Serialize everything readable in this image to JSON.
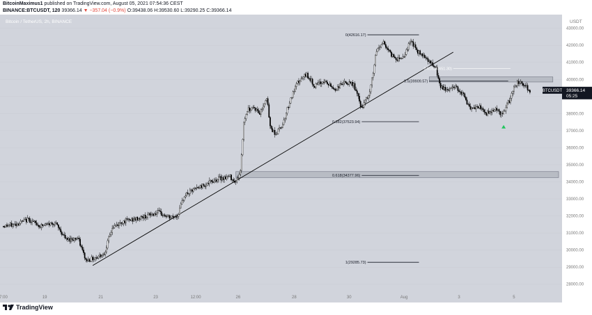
{
  "header": {
    "user": "BitcoinMaximus1",
    "published_text": "published on TradingView.com, August 05, 2021 07:54:36 CEST",
    "symbol_line": "BINANCE:BTCUSDT, 120",
    "last": "39366.14",
    "change": "▼ −357.04 (−0.9%)",
    "open": "O:39438.06",
    "high": "H:39530.60",
    "low": "L:39290.25",
    "close": "C:39366.14"
  },
  "footer": {
    "brand": "TradingView"
  },
  "colors": {
    "background": "#d1d4dc",
    "candle_up": "#ffffff",
    "candle_down": "#000000",
    "down_text": "#e0463b",
    "marker": "#22c55e",
    "zone": "#b2b5be"
  },
  "chart_data": {
    "type": "candlestick",
    "title": "Bitcoin / TetherUS, 2h, BINANCE",
    "price_axis_label": "USDT",
    "ylim": [
      27500,
      43800
    ],
    "y_ticks": [
      28000,
      29000,
      30000,
      31000,
      32000,
      33000,
      34000,
      35000,
      36000,
      37000,
      38000,
      39000,
      40000,
      41000,
      42000,
      43000
    ],
    "y_tick_labels": [
      "28000.00",
      "29000.00",
      "30000.00",
      "31000.00",
      "32000.00",
      "33000.00",
      "34000.00",
      "35000.00",
      "36000.00",
      "37000.00",
      "38000.00",
      "39000.00",
      "40000.00",
      "41000.00",
      "42000.00",
      "43000.00"
    ],
    "x_ticks": [
      {
        "t": 0,
        "label": "7:00"
      },
      {
        "t": 36,
        "label": "19"
      },
      {
        "t": 85,
        "label": "21"
      },
      {
        "t": 133,
        "label": "23"
      },
      {
        "t": 168,
        "label": "12:00"
      },
      {
        "t": 205,
        "label": "26"
      },
      {
        "t": 254,
        "label": "28"
      },
      {
        "t": 302,
        "label": "30"
      },
      {
        "t": 350,
        "label": "Aug"
      },
      {
        "t": 398,
        "label": "3"
      },
      {
        "t": 446,
        "label": "5"
      }
    ],
    "x_range": [
      0,
      485
    ],
    "price_label": {
      "value": 39366.14,
      "text": "39366.14",
      "symbol": "BTCUSDT",
      "countdown": "05:25"
    },
    "anchors": [
      {
        "t": 0,
        "p": 31400
      },
      {
        "t": 10,
        "p": 31500
      },
      {
        "t": 22,
        "p": 31800
      },
      {
        "t": 32,
        "p": 31400
      },
      {
        "t": 45,
        "p": 31600
      },
      {
        "t": 55,
        "p": 30600
      },
      {
        "t": 65,
        "p": 30700
      },
      {
        "t": 72,
        "p": 29400
      },
      {
        "t": 78,
        "p": 29500
      },
      {
        "t": 88,
        "p": 29800
      },
      {
        "t": 95,
        "p": 31300
      },
      {
        "t": 105,
        "p": 31700
      },
      {
        "t": 115,
        "p": 31800
      },
      {
        "t": 125,
        "p": 32000
      },
      {
        "t": 135,
        "p": 32200
      },
      {
        "t": 145,
        "p": 31900
      },
      {
        "t": 152,
        "p": 32000
      },
      {
        "t": 158,
        "p": 33200
      },
      {
        "t": 168,
        "p": 33600
      },
      {
        "t": 178,
        "p": 33900
      },
      {
        "t": 188,
        "p": 34200
      },
      {
        "t": 198,
        "p": 34300
      },
      {
        "t": 203,
        "p": 34000
      },
      {
        "t": 207,
        "p": 34600
      },
      {
        "t": 210,
        "p": 37500
      },
      {
        "t": 213,
        "p": 38200
      },
      {
        "t": 218,
        "p": 38400
      },
      {
        "t": 224,
        "p": 38000
      },
      {
        "t": 230,
        "p": 39000
      },
      {
        "t": 233,
        "p": 37200
      },
      {
        "t": 238,
        "p": 36800
      },
      {
        "t": 244,
        "p": 37400
      },
      {
        "t": 250,
        "p": 38700
      },
      {
        "t": 257,
        "p": 39800
      },
      {
        "t": 265,
        "p": 40300
      },
      {
        "t": 272,
        "p": 39600
      },
      {
        "t": 280,
        "p": 39900
      },
      {
        "t": 290,
        "p": 39400
      },
      {
        "t": 296,
        "p": 39800
      },
      {
        "t": 306,
        "p": 39700
      },
      {
        "t": 313,
        "p": 38300
      },
      {
        "t": 320,
        "p": 39200
      },
      {
        "t": 326,
        "p": 41700
      },
      {
        "t": 332,
        "p": 42200
      },
      {
        "t": 338,
        "p": 41500
      },
      {
        "t": 344,
        "p": 41200
      },
      {
        "t": 350,
        "p": 41400
      },
      {
        "t": 356,
        "p": 42300
      },
      {
        "t": 362,
        "p": 41600
      },
      {
        "t": 368,
        "p": 41400
      },
      {
        "t": 374,
        "p": 40900
      },
      {
        "t": 378,
        "p": 40600
      },
      {
        "t": 382,
        "p": 39500
      },
      {
        "t": 388,
        "p": 39400
      },
      {
        "t": 395,
        "p": 39600
      },
      {
        "t": 402,
        "p": 39100
      },
      {
        "t": 408,
        "p": 38200
      },
      {
        "t": 415,
        "p": 38400
      },
      {
        "t": 422,
        "p": 38000
      },
      {
        "t": 430,
        "p": 38300
      },
      {
        "t": 436,
        "p": 37900
      },
      {
        "t": 440,
        "p": 38500
      },
      {
        "t": 443,
        "p": 38900
      },
      {
        "t": 447,
        "p": 39700
      },
      {
        "t": 452,
        "p": 39900
      },
      {
        "t": 456,
        "p": 39600
      },
      {
        "t": 460,
        "p": 39366
      }
    ],
    "trendline": [
      {
        "t": 78,
        "p": 29100
      },
      {
        "t": 393,
        "p": 41600
      }
    ],
    "support_zones": [
      {
        "from_t": 203,
        "to_t": 485,
        "p_low": 34250,
        "p_high": 34600
      },
      {
        "from_t": 372,
        "to_t": 480,
        "p_low": 39850,
        "p_high": 40150
      }
    ],
    "fib_levels": [
      {
        "ratio_label": "0(42616.17)",
        "value": 42616.17,
        "t1": 318,
        "t2": 363
      },
      {
        "ratio_label": "0.618(40651.30)",
        "value": 40651.3,
        "t1": 393,
        "t2": 443
      },
      {
        "ratio_label": "0.5(39909.57)",
        "value": 39909.57,
        "t1": 372,
        "t2": 441
      },
      {
        "ratio_label": "0.382(37523.94)",
        "value": 37523.94,
        "t1": 313,
        "t2": 363
      },
      {
        "ratio_label": "0.618(34377.96)",
        "value": 34377.96,
        "t1": 313,
        "t2": 363
      },
      {
        "ratio_label": "1(29285.73)",
        "value": 29285.73,
        "t1": 318,
        "t2": 363
      }
    ],
    "marker": {
      "t": 437,
      "p": 37250
    }
  }
}
